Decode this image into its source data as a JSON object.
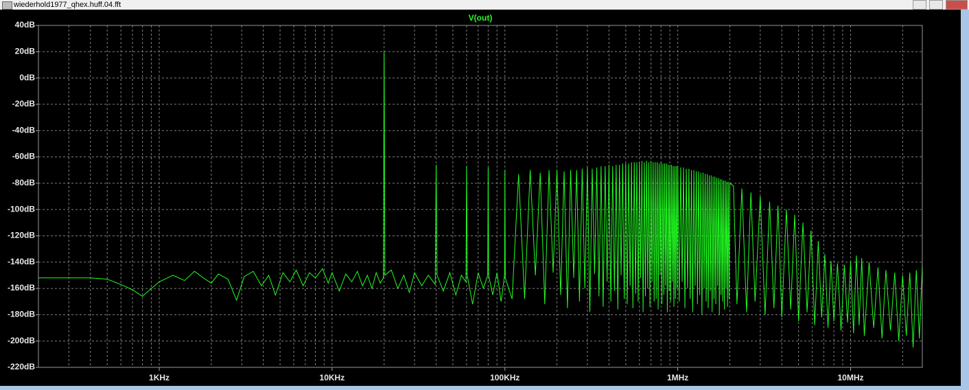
{
  "window": {
    "title": "wiederhold1977_qhex.huff.04.fft"
  },
  "chart_data": {
    "type": "line",
    "xscale": "log",
    "grid": true,
    "xlim": [
      200,
      26000000
    ],
    "xticks": [
      {
        "value": 1000,
        "label": "1KHz"
      },
      {
        "value": 10000,
        "label": "10KHz"
      },
      {
        "value": 100000,
        "label": "100KHz"
      },
      {
        "value": 1000000,
        "label": "1MHz"
      },
      {
        "value": 10000000,
        "label": "10MHz"
      }
    ],
    "xminorticks": [
      300,
      400,
      500,
      600,
      700,
      800,
      900,
      2000,
      3000,
      4000,
      5000,
      6000,
      7000,
      8000,
      9000,
      20000,
      30000,
      40000,
      50000,
      60000,
      70000,
      80000,
      90000,
      200000,
      300000,
      400000,
      500000,
      600000,
      700000,
      800000,
      900000,
      2000000,
      3000000,
      4000000,
      5000000,
      6000000,
      7000000,
      8000000,
      9000000,
      20000000
    ],
    "ylim": [
      -220,
      40
    ],
    "yticks": [
      {
        "value": 40,
        "label": "40dB"
      },
      {
        "value": 20,
        "label": "20dB"
      },
      {
        "value": 0,
        "label": "0dB"
      },
      {
        "value": -20,
        "label": "-20dB"
      },
      {
        "value": -40,
        "label": "-40dB"
      },
      {
        "value": -60,
        "label": "-60dB"
      },
      {
        "value": -80,
        "label": "-80dB"
      },
      {
        "value": -100,
        "label": "-100dB"
      },
      {
        "value": -120,
        "label": "-120dB"
      },
      {
        "value": -140,
        "label": "-140dB"
      },
      {
        "value": -160,
        "label": "-160dB"
      },
      {
        "value": -180,
        "label": "-180dB"
      },
      {
        "value": -200,
        "label": "-200dB"
      },
      {
        "value": -220,
        "label": "-220dB"
      }
    ],
    "x": [
      200,
      400,
      500,
      600,
      700,
      800,
      900,
      1000,
      1200,
      1400,
      1600,
      1800,
      2000,
      2200,
      2500,
      2800,
      3100,
      3500,
      3900,
      4300,
      4700,
      5200,
      5700,
      6200,
      6800,
      7400,
      8000,
      8800,
      9500,
      10000,
      11000,
      12000,
      13000,
      14000,
      15000,
      16000,
      17000,
      18000,
      19000,
      19800,
      20000,
      20200,
      22000,
      24000,
      26000,
      28000,
      30000,
      33000,
      36000,
      39500,
      40000,
      40500,
      44000,
      48000,
      52000,
      56000,
      59500,
      60000,
      60500,
      65000,
      70000,
      75000,
      79500,
      80000,
      80500,
      85000,
      90000,
      95000,
      99500,
      100000,
      100500,
      110000,
      120000,
      130000,
      140000,
      150000,
      160000,
      170000,
      180000,
      190000,
      200000,
      210000,
      220000,
      230000,
      240000,
      250000,
      260000,
      270000,
      280000,
      290000,
      300000,
      310000,
      320000,
      330000,
      340000,
      350000,
      360000,
      370000,
      380000,
      390000,
      400000,
      410000,
      420000,
      430000,
      440000,
      450000,
      460000,
      470000,
      480000,
      490000,
      500000,
      510000,
      520000,
      530000,
      540000,
      550000,
      560000,
      570000,
      580000,
      590000,
      600000,
      610000,
      620000,
      630000,
      640000,
      650000,
      660000,
      670000,
      680000,
      690000,
      700000,
      710000,
      720000,
      730000,
      740000,
      750000,
      760000,
      770000,
      780000,
      790000,
      800000,
      810000,
      820000,
      830000,
      840000,
      850000,
      860000,
      870000,
      880000,
      890000,
      900000,
      910000,
      920000,
      930000,
      940000,
      950000,
      960000,
      970000,
      980000,
      990000,
      1000000,
      1020000,
      1040000,
      1060000,
      1080000,
      1100000,
      1120000,
      1140000,
      1160000,
      1180000,
      1200000,
      1220000,
      1240000,
      1260000,
      1280000,
      1300000,
      1320000,
      1340000,
      1360000,
      1380000,
      1400000,
      1420000,
      1440000,
      1460000,
      1480000,
      1500000,
      1520000,
      1540000,
      1560000,
      1580000,
      1600000,
      1620000,
      1640000,
      1660000,
      1680000,
      1700000,
      1720000,
      1740000,
      1760000,
      1780000,
      1800000,
      1820000,
      1840000,
      1860000,
      1880000,
      1900000,
      1920000,
      1940000,
      1960000,
      1980000,
      2000000,
      2100000,
      2200000,
      2350000,
      2500000,
      2650000,
      2800000,
      3000000,
      3200000,
      3400000,
      3600000,
      3800000,
      4000000,
      4250000,
      4500000,
      4750000,
      5000000,
      5300000,
      5600000,
      5900000,
      6200000,
      6500000,
      6800000,
      7100000,
      7400000,
      7700000,
      8000000,
      8400000,
      8800000,
      9200000,
      9600000,
      10000000,
      10400000,
      10800000,
      11200000,
      11600000,
      12000000,
      12800000,
      13600000,
      14400000,
      15200000,
      16000000,
      17000000,
      18000000,
      19000000,
      20000000,
      21000000,
      22000000,
      23000000,
      24000000,
      25000000,
      26000000
    ],
    "series": [
      {
        "name": "V(out)",
        "color": "#22ff22",
        "values": [
          -152,
          -152,
          -153,
          -157,
          -161,
          -166,
          -160,
          -155,
          -150,
          -154,
          -147,
          -152,
          -156,
          -149,
          -153,
          -169,
          -151,
          -147,
          -158,
          -150,
          -165,
          -148,
          -155,
          -146,
          -158,
          -148,
          -152,
          -145,
          -156,
          -148,
          -162,
          -149,
          -155,
          -147,
          -158,
          -150,
          -160,
          -148,
          -156,
          -152,
          20,
          -150,
          -146,
          -160,
          -150,
          -163,
          -148,
          -158,
          -150,
          -157,
          -66,
          -150,
          -162,
          -148,
          -165,
          -150,
          -155,
          -67,
          -150,
          -172,
          -148,
          -160,
          -150,
          -68,
          -150,
          -165,
          -148,
          -170,
          -150,
          -70,
          -152,
          -168,
          -73,
          -168,
          -70,
          -150,
          -72,
          -172,
          -70,
          -148,
          -70,
          -165,
          -71,
          -175,
          -70,
          -152,
          -70,
          -170,
          -69,
          -160,
          -68,
          -178,
          -69,
          -149,
          -68,
          -166,
          -67,
          -174,
          -67,
          -155,
          -66,
          -170,
          -67,
          -162,
          -66,
          -176,
          -66,
          -150,
          -65,
          -168,
          -65,
          -172,
          -65,
          -158,
          -64,
          -175,
          -64,
          -164,
          -64,
          -170,
          -64,
          -152,
          -63,
          -178,
          -64,
          -166,
          -63,
          -160,
          -64,
          -174,
          -63,
          -155,
          -64,
          -170,
          -64,
          -168,
          -64,
          -176,
          -65,
          -150,
          -64,
          -172,
          -65,
          -165,
          -65,
          -158,
          -65,
          -178,
          -66,
          -162,
          -66,
          -170,
          -66,
          -155,
          -67,
          -174,
          -67,
          -168,
          -67,
          -160,
          -67,
          -170,
          -68,
          -155,
          -68,
          -175,
          -69,
          -160,
          -69,
          -168,
          -70,
          -178,
          -70,
          -158,
          -71,
          -172,
          -71,
          -165,
          -72,
          -180,
          -72,
          -160,
          -73,
          -170,
          -73,
          -175,
          -74,
          -162,
          -74,
          -178,
          -75,
          -168,
          -75,
          -172,
          -76,
          -158,
          -76,
          -180,
          -77,
          -165,
          -77,
          -170,
          -78,
          -176,
          -78,
          -160,
          -79,
          -174,
          -79,
          -168,
          -80,
          -82,
          -172,
          -84,
          -178,
          -87,
          -170,
          -90,
          -180,
          -94,
          -175,
          -97,
          -182,
          -100,
          -176,
          -104,
          -185,
          -110,
          -178,
          -116,
          -188,
          -124,
          -182,
          -134,
          -190,
          -139,
          -185,
          -141,
          -192,
          -142,
          -186,
          -140,
          -194,
          -135,
          -188,
          -137,
          -196,
          -140,
          -190,
          -144,
          -198,
          -146,
          -192,
          -148,
          -200,
          -150,
          -196,
          -148,
          -205,
          -146,
          -198,
          -142
        ]
      }
    ]
  }
}
